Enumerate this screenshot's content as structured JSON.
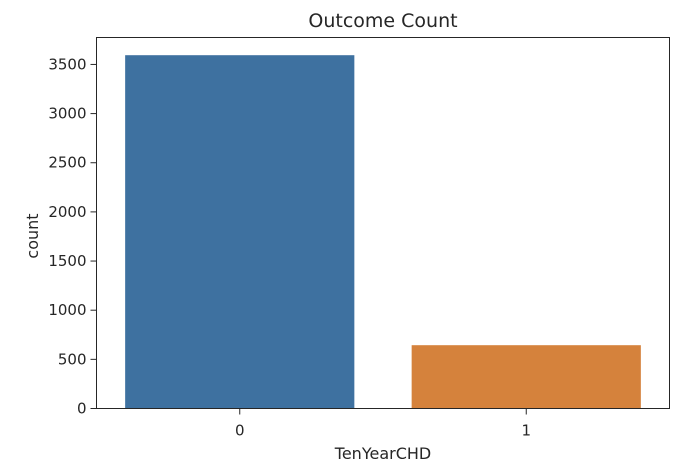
{
  "chart_data": {
    "type": "bar",
    "title": "Outcome Count",
    "xlabel": "TenYearCHD",
    "ylabel": "count",
    "categories": [
      "0",
      "1"
    ],
    "values": [
      3594,
      644
    ],
    "ylim": [
      0,
      3774
    ],
    "yticks": [
      0,
      500,
      1000,
      1500,
      2000,
      2500,
      3000,
      3500
    ],
    "bar_colors": [
      "#3e71a0",
      "#d5823c"
    ],
    "grid": false,
    "legend": "none"
  }
}
